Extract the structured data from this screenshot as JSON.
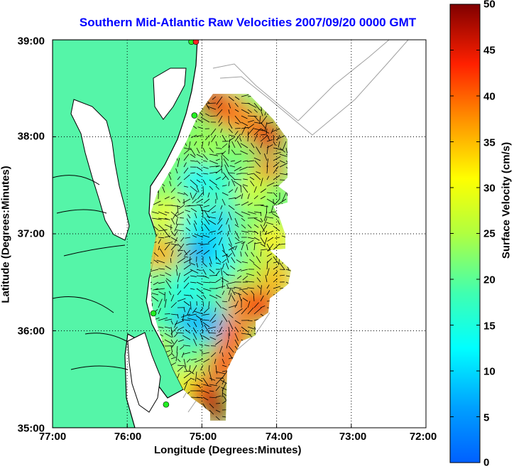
{
  "title": "Southern Mid-Atlantic Raw Velocities 2007/09/20 0000 GMT",
  "axes": {
    "xlabel": "Longitude (Degrees:Minutes)",
    "ylabel": "Latitude (Degrees:Minutes)",
    "xticks": [
      "77:00",
      "76:00",
      "75:00",
      "74:00",
      "73:00",
      "72:00"
    ],
    "yticks": [
      "39:00",
      "38:00",
      "37:00",
      "36:00",
      "35:00"
    ],
    "xlim": [
      -77,
      -72
    ],
    "ylim": [
      35,
      39
    ],
    "grid": "dotted"
  },
  "colorbar": {
    "label": "Surface Velocity (cm/s)",
    "ticks": [
      "50",
      "45",
      "40",
      "35",
      "30",
      "25",
      "20",
      "15",
      "10",
      "5",
      "0"
    ],
    "range": [
      0,
      50
    ],
    "colormap": "jet"
  },
  "colors": {
    "land": "#55f5a8",
    "coast": "#000000",
    "bathymetry": "#a0a0a0",
    "title": "#0000ff",
    "station": "#22ee22",
    "station_alt": "#ff2222"
  },
  "stations": [
    {
      "lon": -75.14,
      "lat": 38.98,
      "color": "#22ee22"
    },
    {
      "lon": -75.08,
      "lat": 38.98,
      "color": "#ff2222"
    },
    {
      "lon": -75.1,
      "lat": 38.22,
      "color": "#22ee22"
    },
    {
      "lon": -75.65,
      "lat": 36.18,
      "color": "#22ee22"
    },
    {
      "lon": -75.48,
      "lat": 35.24,
      "color": "#22ee22"
    }
  ],
  "chart_data": {
    "type": "heatmap",
    "description_units": "surface current speed in cm/s",
    "velocity_field": [
      {
        "lon": -74.85,
        "lat": 38.35,
        "speed": 46
      },
      {
        "lon": -74.6,
        "lat": 38.25,
        "speed": 40
      },
      {
        "lon": -74.3,
        "lat": 38.1,
        "speed": 38
      },
      {
        "lon": -74.1,
        "lat": 38.0,
        "speed": 45
      },
      {
        "lon": -74.1,
        "lat": 37.6,
        "speed": 42
      },
      {
        "lon": -74.95,
        "lat": 37.9,
        "speed": 24
      },
      {
        "lon": -74.5,
        "lat": 37.8,
        "speed": 22
      },
      {
        "lon": -75.35,
        "lat": 37.6,
        "speed": 22
      },
      {
        "lon": -75.05,
        "lat": 37.55,
        "speed": 12
      },
      {
        "lon": -74.7,
        "lat": 37.5,
        "speed": 16
      },
      {
        "lon": -74.3,
        "lat": 37.45,
        "speed": 28
      },
      {
        "lon": -73.95,
        "lat": 37.4,
        "speed": 22
      },
      {
        "lon": -75.45,
        "lat": 37.2,
        "speed": 30
      },
      {
        "lon": -75.1,
        "lat": 37.1,
        "speed": 14
      },
      {
        "lon": -74.75,
        "lat": 37.1,
        "speed": 10
      },
      {
        "lon": -74.4,
        "lat": 37.0,
        "speed": 22
      },
      {
        "lon": -74.05,
        "lat": 36.95,
        "speed": 32
      },
      {
        "lon": -75.55,
        "lat": 36.8,
        "speed": 36
      },
      {
        "lon": -75.0,
        "lat": 36.8,
        "speed": 5
      },
      {
        "lon": -74.7,
        "lat": 36.75,
        "speed": 12
      },
      {
        "lon": -74.35,
        "lat": 36.65,
        "speed": 24
      },
      {
        "lon": -74.0,
        "lat": 36.55,
        "speed": 35
      },
      {
        "lon": -75.55,
        "lat": 36.45,
        "speed": 20
      },
      {
        "lon": -75.2,
        "lat": 36.45,
        "speed": 14
      },
      {
        "lon": -74.8,
        "lat": 36.4,
        "speed": 18
      },
      {
        "lon": -74.45,
        "lat": 36.3,
        "speed": 38
      },
      {
        "lon": -74.2,
        "lat": 36.25,
        "speed": 44
      },
      {
        "lon": -75.5,
        "lat": 36.15,
        "speed": 18
      },
      {
        "lon": -75.15,
        "lat": 36.1,
        "speed": 8
      },
      {
        "lon": -74.85,
        "lat": 36.05,
        "speed": 8
      },
      {
        "lon": -74.55,
        "lat": 35.95,
        "speed": 40
      },
      {
        "lon": -75.5,
        "lat": 35.8,
        "speed": 26
      },
      {
        "lon": -75.2,
        "lat": 35.75,
        "speed": 18
      },
      {
        "lon": -74.95,
        "lat": 35.7,
        "speed": 22
      },
      {
        "lon": -74.7,
        "lat": 35.65,
        "speed": 42
      },
      {
        "lon": -75.2,
        "lat": 35.45,
        "speed": 30
      },
      {
        "lon": -74.95,
        "lat": 35.35,
        "speed": 44
      },
      {
        "lon": -74.8,
        "lat": 35.2,
        "speed": 48
      }
    ]
  }
}
